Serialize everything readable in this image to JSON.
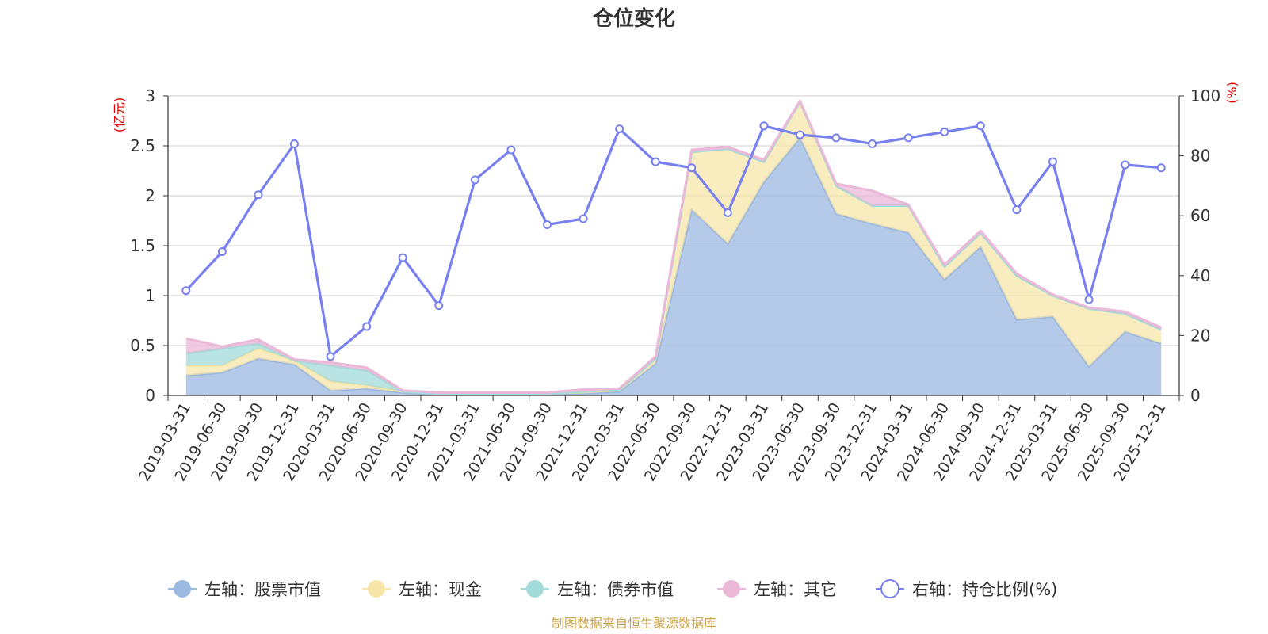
{
  "chart_data": {
    "type": "area",
    "title": "仓位变化",
    "left_unit": "(亿元)",
    "right_unit": "(%)",
    "source": "制图数据来自恒生聚源数据库",
    "x": [
      "2019-03-31",
      "2019-06-30",
      "2019-09-30",
      "2019-12-31",
      "2020-03-31",
      "2020-06-30",
      "2020-09-30",
      "2020-12-31",
      "2021-03-31",
      "2021-06-30",
      "2021-09-30",
      "2021-12-31",
      "2022-03-31",
      "2022-06-30",
      "2022-09-30",
      "2022-12-31",
      "2023-03-31",
      "2023-06-30",
      "2023-09-30",
      "2023-12-31",
      "2024-03-31",
      "2024-06-30",
      "2024-09-30",
      "2024-12-31",
      "2025-03-31",
      "2025-06-30",
      "2025-09-30",
      "2025-12-31"
    ],
    "left_axis": {
      "ylim": [
        0,
        3
      ],
      "ticks": [
        "0",
        "0.5",
        "1",
        "1.5",
        "2",
        "2.5",
        "3"
      ]
    },
    "right_axis": {
      "ylim": [
        0,
        100
      ],
      "ticks": [
        "0",
        "20",
        "40",
        "60",
        "80",
        "100"
      ]
    },
    "stacked_series": [
      {
        "name": "左轴：股票市值",
        "color": "#9bb8e0",
        "values": [
          0.2,
          0.23,
          0.37,
          0.31,
          0.05,
          0.07,
          0.03,
          0.01,
          0.01,
          0.01,
          0.01,
          0.02,
          0.04,
          0.32,
          1.86,
          1.52,
          2.14,
          2.58,
          1.82,
          1.72,
          1.63,
          1.16,
          1.49,
          0.76,
          0.79,
          0.29,
          0.64,
          0.52
        ]
      },
      {
        "name": "左轴：现金",
        "color": "#f7e6a8",
        "values": [
          0.1,
          0.07,
          0.1,
          0.04,
          0.09,
          0.03,
          0.01,
          0.01,
          0.01,
          0.01,
          0.01,
          0.02,
          0.02,
          0.05,
          0.58,
          0.95,
          0.2,
          0.36,
          0.28,
          0.18,
          0.27,
          0.13,
          0.14,
          0.44,
          0.21,
          0.58,
          0.18,
          0.14
        ]
      },
      {
        "name": "左轴：债券市值",
        "color": "#a3dada",
        "values": [
          0.12,
          0.17,
          0.05,
          0.0,
          0.16,
          0.15,
          0.0,
          0.0,
          0.0,
          0.0,
          0.0,
          0.0,
          0.0,
          0.0,
          0.0,
          0.0,
          0.0,
          0.0,
          0.0,
          0.0,
          0.0,
          0.0,
          0.0,
          0.0,
          0.0,
          0.0,
          0.0,
          0.0
        ]
      },
      {
        "name": "左轴：其它",
        "color": "#ebb8d8",
        "values": [
          0.15,
          0.02,
          0.04,
          0.01,
          0.03,
          0.03,
          0.01,
          0.01,
          0.01,
          0.01,
          0.01,
          0.02,
          0.01,
          0.02,
          0.02,
          0.02,
          0.02,
          0.01,
          0.02,
          0.15,
          0.01,
          0.02,
          0.02,
          0.02,
          0.01,
          0.01,
          0.02,
          0.02
        ]
      }
    ],
    "line_series": {
      "name": "右轴：持仓比例(%)",
      "color": "#7880f0",
      "values": [
        35,
        48,
        67,
        84,
        13,
        23,
        46,
        30,
        72,
        82,
        57,
        59,
        89,
        78,
        76,
        61,
        90,
        87,
        86,
        84,
        86,
        88,
        90,
        62,
        78,
        32,
        77,
        76
      ]
    },
    "legend_position": "bottom",
    "grid": true
  }
}
